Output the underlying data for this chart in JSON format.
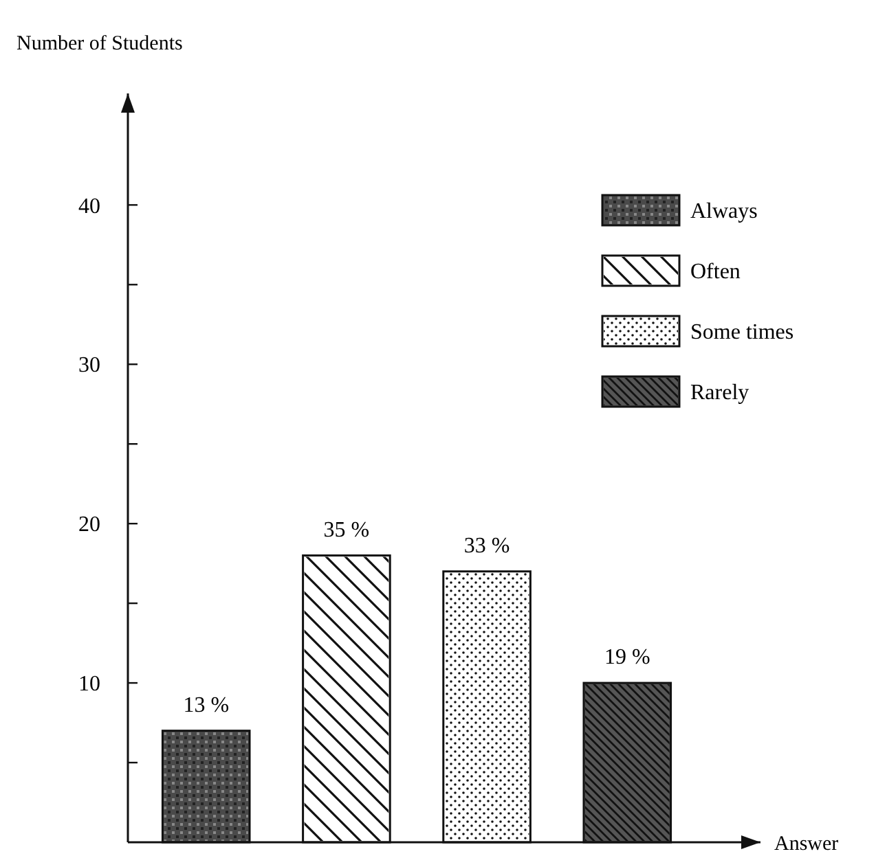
{
  "chart_data": {
    "type": "bar",
    "ylabel": "Number of Students",
    "xlabel": "Answer",
    "categories": [
      null,
      null,
      null,
      null
    ],
    "series": [
      {
        "name": "Always",
        "color": "#4a4a4a",
        "values": [
          7,
          null,
          null,
          null
        ]
      },
      {
        "name": "Often",
        "color": "#ffffff",
        "values": [
          null,
          18,
          null,
          null
        ]
      },
      {
        "name": "Some times",
        "color": "#ffffff",
        "values": [
          null,
          null,
          17,
          null
        ]
      },
      {
        "name": "Rarely",
        "color": "#555555",
        "values": [
          null,
          null,
          null,
          10
        ]
      }
    ],
    "annotations": [
      {
        "text": "13 %",
        "y": 7
      },
      {
        "text": "35 %",
        "y": 18
      },
      {
        "text": "33 %",
        "y": 17
      },
      {
        "text": "19 %",
        "y": 10
      }
    ],
    "ylim": [
      0,
      47
    ],
    "yticks": [
      {
        "value": 5,
        "label": null
      },
      10,
      {
        "value": 15,
        "label": null
      },
      20,
      {
        "value": 25,
        "label": null
      },
      30,
      {
        "value": 35,
        "label": null
      },
      40
    ],
    "tick_labels": "y",
    "legend": "top right",
    "grid": false
  }
}
